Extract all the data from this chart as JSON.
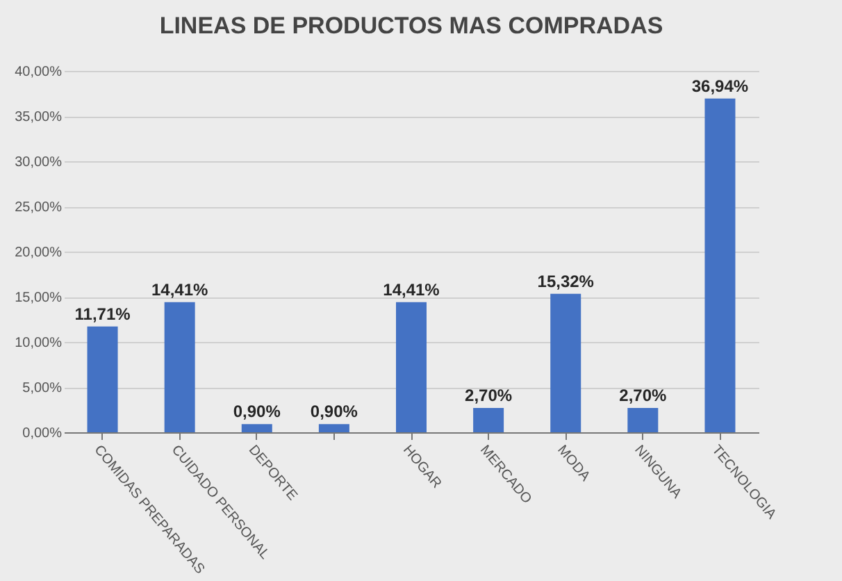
{
  "chart_data": {
    "type": "bar",
    "title": "LINEAS DE PRODUCTOS MAS COMPRADAS",
    "categories": [
      "COMIDAS PREPARADAS",
      "CUIDADO PERSONAL",
      "DEPORTE",
      null,
      "HOGAR",
      "MERCADO",
      "MODA",
      "NINGUNA",
      "TECNOLOGIA"
    ],
    "values": [
      11.71,
      14.41,
      0.9,
      0.9,
      14.41,
      2.7,
      15.32,
      2.7,
      36.94
    ],
    "value_labels": [
      "11,71%",
      "14,41%",
      "0,90%",
      "0,90%",
      "14,41%",
      "2,70%",
      "15,32%",
      "2,70%",
      "36,94%"
    ],
    "color": "#4472c4",
    "ylim": [
      0,
      40
    ],
    "yticks": [
      {
        "value": 0,
        "label": "0,00%"
      },
      {
        "value": 5,
        "label": "5,00%"
      },
      {
        "value": 10,
        "label": "10,00%"
      },
      {
        "value": 15,
        "label": "15,00%"
      },
      {
        "value": 20,
        "label": "20,00%"
      },
      {
        "value": 25,
        "label": "25,00%"
      },
      {
        "value": 30,
        "label": "30,00%"
      },
      {
        "value": 35,
        "label": "35,00%"
      },
      {
        "value": 40,
        "label": "40,00%"
      }
    ],
    "grid": "y"
  }
}
